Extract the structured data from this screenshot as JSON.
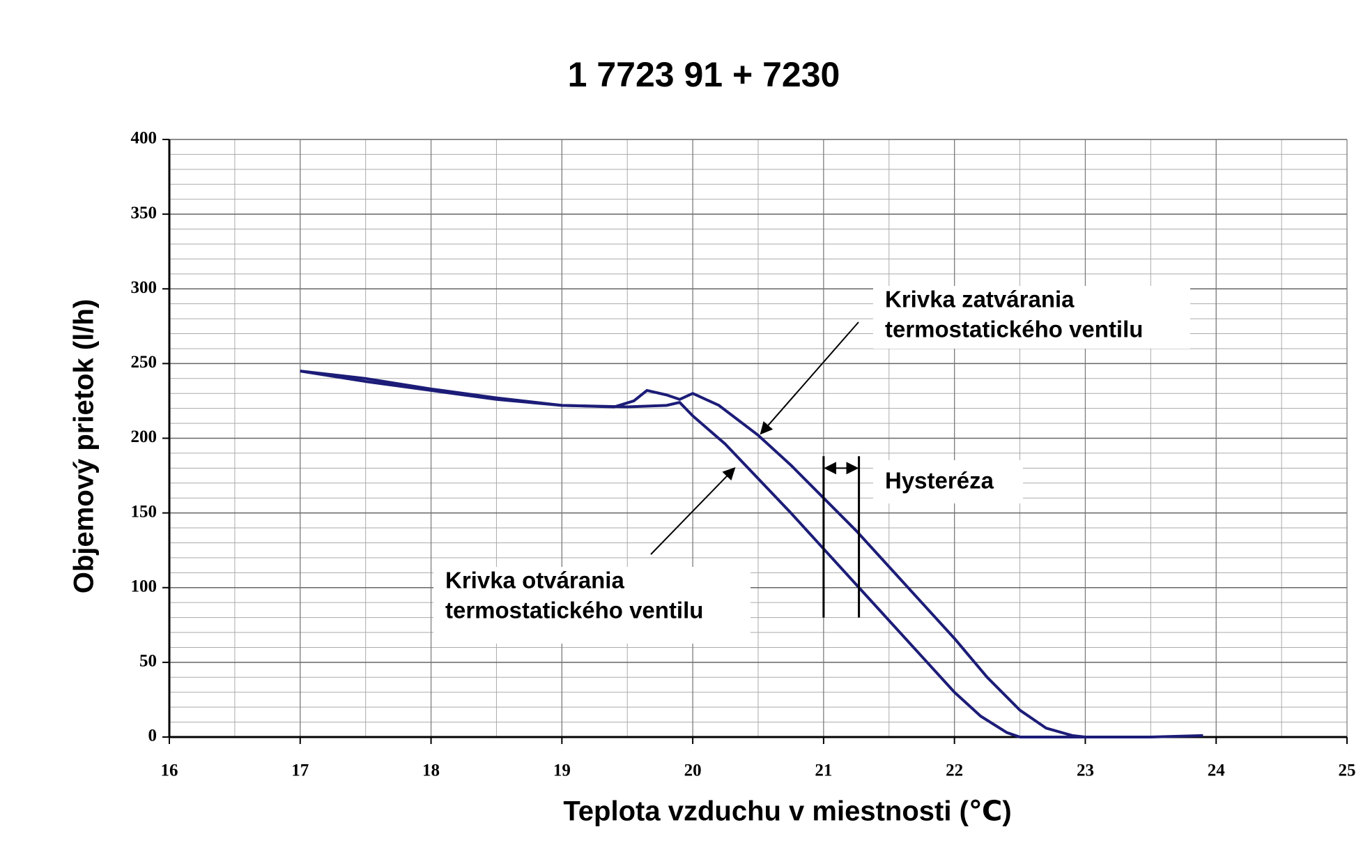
{
  "chart_data": {
    "type": "line",
    "title": "1 7723 91 + 7230",
    "x_label": "Teplota vzduchu v miestnosti (℃)",
    "y_label": "Objemový prietok (l/h)",
    "xlim": [
      16,
      25
    ],
    "ylim": [
      0,
      400
    ],
    "xticks": [
      16,
      17,
      18,
      19,
      20,
      21,
      22,
      23,
      24,
      25
    ],
    "yticks": [
      0,
      50,
      100,
      150,
      200,
      250,
      300,
      350,
      400
    ],
    "grid": true,
    "minor_grid": {
      "x": 0.5,
      "y": 10
    },
    "series": [
      {
        "color": "#1c1c78",
        "x": [
          17.0,
          17.5,
          18.0,
          18.5,
          19.0,
          19.4,
          19.55,
          19.65,
          19.8,
          19.9,
          20.0,
          20.2,
          20.5,
          20.75,
          21.0,
          21.25,
          21.5,
          21.75,
          22.0,
          22.25,
          22.5,
          22.7,
          22.9,
          23.0,
          23.5,
          23.9
        ],
        "values": [
          245,
          240,
          233,
          227,
          222,
          221,
          225,
          232,
          229,
          226,
          230,
          222,
          202,
          182,
          160,
          138,
          114,
          90,
          66,
          40,
          18,
          6,
          1,
          0,
          0,
          1
        ]
      },
      {
        "color": "#1c1c78",
        "x": [
          17.0,
          17.5,
          18.0,
          18.5,
          19.0,
          19.5,
          19.8,
          19.9,
          20.0,
          20.25,
          20.5,
          20.75,
          21.0,
          21.25,
          21.5,
          21.75,
          22.0,
          22.2,
          22.4,
          22.5,
          23.0
        ],
        "values": [
          245,
          238,
          232,
          226,
          222,
          221,
          222,
          224,
          215,
          196,
          173,
          150,
          126,
          102,
          78,
          54,
          30,
          14,
          3,
          0,
          0
        ]
      }
    ],
    "annotations": [
      {
        "lines": [
          "Krivka zatvárania",
          "termostatického ventilu"
        ],
        "point": [
          20.52,
          203
        ]
      },
      {
        "lines": [
          "Krivka otvárania",
          "termostatického ventilu"
        ],
        "point": [
          20.32,
          180
        ]
      },
      {
        "lines": [
          "Hysteréza"
        ]
      }
    ],
    "hysteresis": {
      "x": [
        21.0,
        21.27
      ],
      "y": [
        80,
        188
      ],
      "arrow_y": 180
    }
  }
}
